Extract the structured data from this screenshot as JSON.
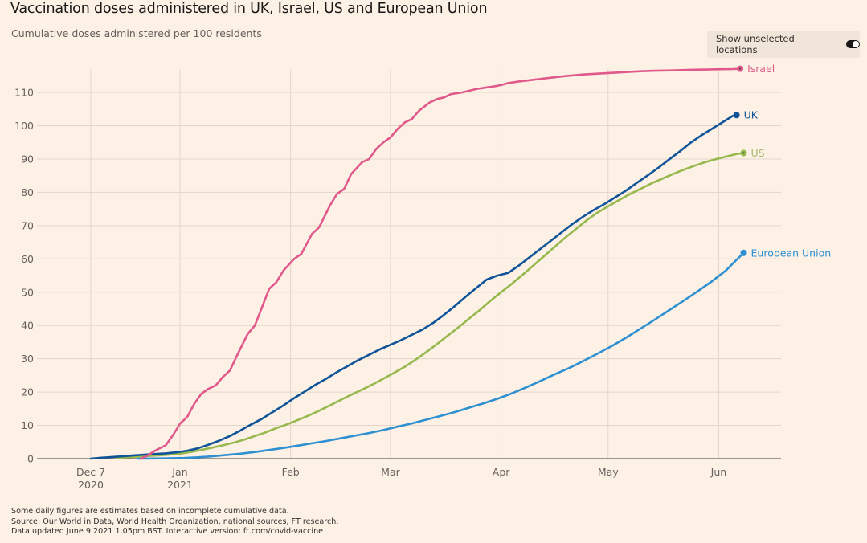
{
  "header": {
    "title": "Vaccination doses administered in UK, Israel, US and European Union",
    "subtitle": "Cumulative doses administered per 100 residents"
  },
  "controls": {
    "toggle_label": "Show unselected locations",
    "toggle_state": "on"
  },
  "footnotes": [
    "Some daily figures are estimates based on incomplete cumulative data.",
    "Source: Our World in Data, World Health Organization, national sources, FT research.",
    "Data updated June 9 2021 1.05pm BST. Interactive version: ft.com/covid-vaccine"
  ],
  "chart_data": {
    "type": "line",
    "title": "Vaccination doses administered in UK, Israel, US and European Union",
    "subtitle": "Cumulative doses administered per 100 residents",
    "xlabel": "",
    "ylabel": "Cumulative doses administered per 100 residents",
    "x_unit": "days since 2020-12-07",
    "xlim": [
      -14,
      195
    ],
    "ylim": [
      0,
      117
    ],
    "grid": true,
    "legend": "direct-labels-right",
    "y_ticks": [
      0,
      10,
      20,
      30,
      40,
      50,
      60,
      70,
      80,
      90,
      100,
      110
    ],
    "x_ticks": [
      {
        "day": 0,
        "label": "Dec 7",
        "sublabel": "2020"
      },
      {
        "day": 25,
        "label": "Jan",
        "sublabel": "2021"
      },
      {
        "day": 56,
        "label": "Feb",
        "sublabel": ""
      },
      {
        "day": 84,
        "label": "Mar",
        "sublabel": ""
      },
      {
        "day": 115,
        "label": "Apr",
        "sublabel": ""
      },
      {
        "day": 145,
        "label": "May",
        "sublabel": ""
      },
      {
        "day": 176,
        "label": "Jun",
        "sublabel": ""
      }
    ],
    "series": [
      {
        "name": "Israel",
        "color": "#e0598b",
        "end_marker": "ring",
        "points": [
          [
            14,
            0
          ],
          [
            16,
            1
          ],
          [
            18,
            2.4
          ],
          [
            21,
            4
          ],
          [
            23,
            7
          ],
          [
            25,
            10.5
          ],
          [
            27,
            12.5
          ],
          [
            29,
            16.5
          ],
          [
            31,
            19.5
          ],
          [
            33,
            21
          ],
          [
            35,
            22
          ],
          [
            37,
            24.5
          ],
          [
            39,
            26.5
          ],
          [
            41,
            31
          ],
          [
            44,
            37.5
          ],
          [
            46,
            40
          ],
          [
            48,
            45.5
          ],
          [
            50,
            51
          ],
          [
            52,
            53
          ],
          [
            54,
            56.5
          ],
          [
            57,
            60
          ],
          [
            59,
            61.5
          ],
          [
            62,
            67.5
          ],
          [
            64,
            69.5
          ],
          [
            67,
            76
          ],
          [
            69,
            79.5
          ],
          [
            71,
            81
          ],
          [
            73,
            85.5
          ],
          [
            76,
            89
          ],
          [
            78,
            90
          ],
          [
            80,
            93
          ],
          [
            82,
            95
          ],
          [
            84,
            96.5
          ],
          [
            86,
            99
          ],
          [
            88,
            101
          ],
          [
            90,
            102
          ],
          [
            92,
            104.5
          ],
          [
            95,
            107
          ],
          [
            97,
            108
          ],
          [
            99,
            108.5
          ],
          [
            101,
            109.5
          ],
          [
            104,
            110
          ],
          [
            106,
            110.5
          ],
          [
            108,
            111
          ],
          [
            111,
            111.5
          ],
          [
            113,
            111.8
          ],
          [
            115,
            112.2
          ],
          [
            117,
            112.8
          ],
          [
            120,
            113.3
          ],
          [
            124,
            113.8
          ],
          [
            128,
            114.3
          ],
          [
            133,
            114.9
          ],
          [
            138,
            115.4
          ],
          [
            143,
            115.7
          ],
          [
            148,
            116
          ],
          [
            153,
            116.3
          ],
          [
            158,
            116.5
          ],
          [
            163,
            116.6
          ],
          [
            168,
            116.8
          ],
          [
            174,
            116.9
          ],
          [
            180,
            117
          ],
          [
            182,
            117.1
          ]
        ]
      },
      {
        "name": "UK",
        "color": "#0f5499",
        "end_marker": "dot",
        "points": [
          [
            0,
            0
          ],
          [
            3,
            0.3
          ],
          [
            6,
            0.5
          ],
          [
            9,
            0.7
          ],
          [
            12,
            1
          ],
          [
            15,
            1.2
          ],
          [
            18,
            1.4
          ],
          [
            21,
            1.6
          ],
          [
            24,
            1.9
          ],
          [
            27,
            2.4
          ],
          [
            30,
            3.1
          ],
          [
            33,
            4.2
          ],
          [
            36,
            5.4
          ],
          [
            39,
            6.8
          ],
          [
            42,
            8.5
          ],
          [
            45,
            10.3
          ],
          [
            48,
            12.0
          ],
          [
            51,
            14.0
          ],
          [
            54,
            16.0
          ],
          [
            57,
            18.2
          ],
          [
            60,
            20.2
          ],
          [
            63,
            22.2
          ],
          [
            66,
            24.0
          ],
          [
            69,
            26.0
          ],
          [
            72,
            27.8
          ],
          [
            75,
            29.6
          ],
          [
            78,
            31.2
          ],
          [
            81,
            32.8
          ],
          [
            84,
            34.2
          ],
          [
            87,
            35.6
          ],
          [
            90,
            37.2
          ],
          [
            93,
            38.8
          ],
          [
            96,
            40.8
          ],
          [
            99,
            43.2
          ],
          [
            102,
            45.8
          ],
          [
            105,
            48.6
          ],
          [
            108,
            51.2
          ],
          [
            111,
            53.8
          ],
          [
            114,
            55.0
          ],
          [
            117,
            55.8
          ],
          [
            120,
            58
          ],
          [
            123,
            60.5
          ],
          [
            126,
            63
          ],
          [
            129,
            65.5
          ],
          [
            132,
            68
          ],
          [
            135,
            70.5
          ],
          [
            138,
            72.7
          ],
          [
            141,
            74.7
          ],
          [
            144,
            76.5
          ],
          [
            147,
            78.5
          ],
          [
            150,
            80.5
          ],
          [
            153,
            82.8
          ],
          [
            156,
            85.0
          ],
          [
            159,
            87.3
          ],
          [
            162,
            89.8
          ],
          [
            165,
            92.2
          ],
          [
            168,
            94.8
          ],
          [
            171,
            97.0
          ],
          [
            174,
            99.0
          ],
          [
            177,
            101.0
          ],
          [
            180,
            103.0
          ],
          [
            181,
            103.2
          ]
        ]
      },
      {
        "name": "US",
        "color": "#96b84c",
        "label_color": "#a3ba6b",
        "end_marker": "ring",
        "points": [
          [
            7,
            0.1
          ],
          [
            10,
            0.4
          ],
          [
            13,
            0.6
          ],
          [
            16,
            0.8
          ],
          [
            19,
            1.0
          ],
          [
            22,
            1.2
          ],
          [
            25,
            1.5
          ],
          [
            28,
            2.0
          ],
          [
            31,
            2.6
          ],
          [
            34,
            3.3
          ],
          [
            37,
            4.0
          ],
          [
            40,
            4.8
          ],
          [
            43,
            5.7
          ],
          [
            46,
            6.8
          ],
          [
            49,
            7.9
          ],
          [
            52,
            9.2
          ],
          [
            55,
            10.3
          ],
          [
            58,
            11.6
          ],
          [
            61,
            12.9
          ],
          [
            64,
            14.4
          ],
          [
            67,
            16.0
          ],
          [
            70,
            17.6
          ],
          [
            73,
            19.2
          ],
          [
            76,
            20.7
          ],
          [
            79,
            22.3
          ],
          [
            82,
            24.0
          ],
          [
            85,
            25.8
          ],
          [
            88,
            27.6
          ],
          [
            91,
            29.7
          ],
          [
            94,
            32.0
          ],
          [
            97,
            34.4
          ],
          [
            100,
            36.9
          ],
          [
            103,
            39.4
          ],
          [
            106,
            42.0
          ],
          [
            109,
            44.6
          ],
          [
            112,
            47.4
          ],
          [
            115,
            50.0
          ],
          [
            118,
            52.5
          ],
          [
            121,
            55.2
          ],
          [
            124,
            58.0
          ],
          [
            127,
            60.8
          ],
          [
            130,
            63.6
          ],
          [
            133,
            66.4
          ],
          [
            136,
            69.0
          ],
          [
            139,
            71.6
          ],
          [
            142,
            73.9
          ],
          [
            145,
            75.8
          ],
          [
            148,
            77.6
          ],
          [
            151,
            79.4
          ],
          [
            154,
            81.0
          ],
          [
            157,
            82.6
          ],
          [
            160,
            84.0
          ],
          [
            163,
            85.4
          ],
          [
            166,
            86.7
          ],
          [
            169,
            87.9
          ],
          [
            172,
            89.0
          ],
          [
            175,
            89.9
          ],
          [
            178,
            90.7
          ],
          [
            181,
            91.5
          ],
          [
            183,
            91.8
          ]
        ]
      },
      {
        "name": "European Union",
        "color": "#2e8fd1",
        "end_marker": "dot",
        "points": [
          [
            13,
            0
          ],
          [
            18,
            0.05
          ],
          [
            22,
            0.1
          ],
          [
            26,
            0.2
          ],
          [
            30,
            0.4
          ],
          [
            34,
            0.7
          ],
          [
            38,
            1.1
          ],
          [
            42,
            1.5
          ],
          [
            46,
            2.0
          ],
          [
            50,
            2.6
          ],
          [
            54,
            3.2
          ],
          [
            58,
            3.9
          ],
          [
            62,
            4.6
          ],
          [
            66,
            5.3
          ],
          [
            70,
            6.1
          ],
          [
            74,
            6.9
          ],
          [
            78,
            7.7
          ],
          [
            82,
            8.6
          ],
          [
            86,
            9.6
          ],
          [
            90,
            10.6
          ],
          [
            94,
            11.7
          ],
          [
            98,
            12.8
          ],
          [
            102,
            14.0
          ],
          [
            106,
            15.3
          ],
          [
            110,
            16.6
          ],
          [
            114,
            18.0
          ],
          [
            118,
            19.6
          ],
          [
            122,
            21.4
          ],
          [
            126,
            23.3
          ],
          [
            130,
            25.3
          ],
          [
            134,
            27.2
          ],
          [
            138,
            29.3
          ],
          [
            142,
            31.5
          ],
          [
            146,
            33.8
          ],
          [
            150,
            36.3
          ],
          [
            154,
            39.0
          ],
          [
            158,
            41.7
          ],
          [
            162,
            44.5
          ],
          [
            166,
            47.3
          ],
          [
            170,
            50.2
          ],
          [
            174,
            53.2
          ],
          [
            178,
            56.5
          ],
          [
            181,
            59.7
          ],
          [
            183,
            61.8
          ]
        ]
      }
    ]
  }
}
